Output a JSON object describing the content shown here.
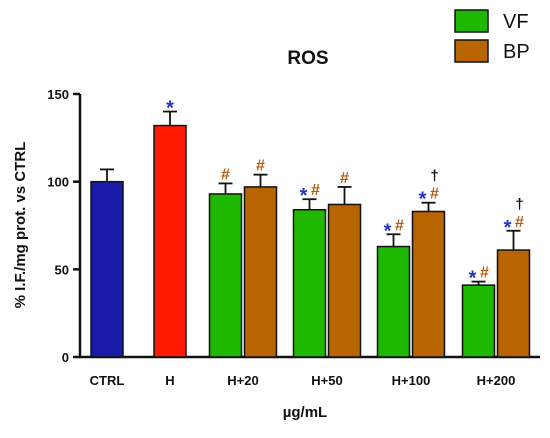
{
  "chart_data": {
    "type": "bar",
    "title": "ROS",
    "xlabel": "µg/mL",
    "ylabel": "% I.F./mg prot. vs CTRL",
    "ylim": [
      0,
      150
    ],
    "yticks": [
      "0",
      "50",
      "100",
      "150"
    ],
    "grid": false,
    "legend_position": "top-right",
    "legend": [
      {
        "name": "VF",
        "color": "#1fb800"
      },
      {
        "name": "BP",
        "color": "#b86400"
      }
    ],
    "colors": {
      "ctrl": "#1a1aa8",
      "h": "#ff1a00",
      "vf": "#1fb800",
      "bp": "#b86400",
      "star": "#2233cc",
      "hash": "#b85a12",
      "dagger": "#111111"
    },
    "bars": [
      {
        "group": "CTRL",
        "series": "",
        "value": 100,
        "error": 7,
        "marks": []
      },
      {
        "group": "H",
        "series": "",
        "value": 132,
        "error": 8,
        "marks": [
          {
            "text": "*",
            "kind": "star"
          }
        ]
      },
      {
        "group": "H+20",
        "series": "VF",
        "value": 93,
        "error": 6,
        "marks": [
          {
            "text": "#",
            "kind": "hash"
          }
        ]
      },
      {
        "group": "H+20",
        "series": "BP",
        "value": 97,
        "error": 7,
        "marks": [
          {
            "text": "#",
            "kind": "hash"
          }
        ]
      },
      {
        "group": "H+50",
        "series": "VF",
        "value": 84,
        "error": 6,
        "marks": [
          {
            "text": "*",
            "kind": "star"
          },
          {
            "text": "#",
            "kind": "hash"
          }
        ]
      },
      {
        "group": "H+50",
        "series": "BP",
        "value": 87,
        "error": 10,
        "marks": [
          {
            "text": "#",
            "kind": "hash"
          }
        ]
      },
      {
        "group": "H+100",
        "series": "VF",
        "value": 63,
        "error": 7,
        "marks": [
          {
            "text": "*",
            "kind": "star"
          },
          {
            "text": "#",
            "kind": "hash"
          }
        ]
      },
      {
        "group": "H+100",
        "series": "BP",
        "value": 83,
        "error": 5,
        "marks": [
          {
            "text": "*",
            "kind": "star"
          },
          {
            "text": "#",
            "kind": "hash"
          },
          {
            "text": "†",
            "kind": "dagger"
          }
        ]
      },
      {
        "group": "H+200",
        "series": "VF",
        "value": 41,
        "error": 2,
        "marks": [
          {
            "text": "*",
            "kind": "star"
          },
          {
            "text": "#",
            "kind": "hash"
          }
        ]
      },
      {
        "group": "H+200",
        "series": "BP",
        "value": 61,
        "error": 11,
        "marks": [
          {
            "text": "*",
            "kind": "star"
          },
          {
            "text": "#",
            "kind": "hash"
          },
          {
            "text": "†",
            "kind": "dagger"
          }
        ]
      }
    ],
    "categories": [
      "CTRL",
      "H",
      "H+20",
      "H+50",
      "H+100",
      "H+200"
    ]
  }
}
